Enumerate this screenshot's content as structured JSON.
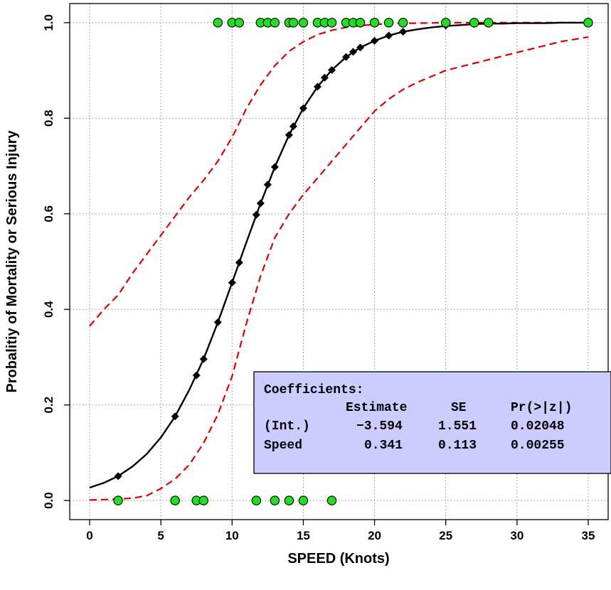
{
  "chart_data": {
    "type": "scatter",
    "xlabel": "SPEED (Knots)",
    "ylabel": "Probalitiy of Mortality or Serious Injury",
    "xlim": [
      -1.4,
      36.4
    ],
    "ylim": [
      -0.04,
      1.04
    ],
    "x_ticks": [
      "0",
      "5",
      "10",
      "15",
      "20",
      "25",
      "30",
      "35"
    ],
    "y_ticks": [
      "0.0",
      "0.2",
      "0.4",
      "0.6",
      "0.8",
      "1.0"
    ],
    "grid": true,
    "colors": {
      "fit": "#000000",
      "ci": "#dd0000",
      "points": "#22dd22",
      "box_fill": "#ccccff",
      "grid": "#888888"
    },
    "observed_zero": [
      2,
      6,
      7.5,
      8,
      11.7,
      13,
      14,
      15,
      17
    ],
    "observed_one": [
      9,
      10,
      10.5,
      12,
      12.5,
      13,
      14,
      14.3,
      15,
      16,
      16.5,
      17,
      18,
      18.5,
      19,
      20,
      21,
      22,
      25,
      27,
      28,
      35
    ],
    "fitted_x": [
      2,
      6,
      7.5,
      8,
      9,
      10,
      10.5,
      11.7,
      12,
      12.5,
      13,
      14,
      14.3,
      15,
      16,
      16.5,
      17,
      18,
      18.5,
      19,
      20,
      21,
      22,
      25,
      27,
      28,
      35
    ],
    "fitted_y": [
      0.051,
      0.176,
      0.262,
      0.296,
      0.373,
      0.456,
      0.498,
      0.598,
      0.622,
      0.661,
      0.698,
      0.765,
      0.783,
      0.821,
      0.866,
      0.885,
      0.901,
      0.928,
      0.939,
      0.948,
      0.962,
      0.973,
      0.981,
      0.994,
      0.997,
      0.998,
      1.0
    ],
    "fit_curve": {
      "x": [
        0,
        1,
        2,
        3,
        4,
        5,
        6,
        7,
        8,
        9,
        10,
        11,
        12,
        13,
        14,
        15,
        16,
        17,
        18,
        19,
        20,
        21,
        22,
        23,
        24,
        25,
        26,
        27,
        28,
        29,
        30,
        31,
        32,
        33,
        34,
        35
      ],
      "y": [
        0.027,
        0.037,
        0.051,
        0.071,
        0.097,
        0.132,
        0.176,
        0.232,
        0.296,
        0.373,
        0.456,
        0.54,
        0.622,
        0.698,
        0.765,
        0.821,
        0.866,
        0.901,
        0.928,
        0.948,
        0.962,
        0.973,
        0.981,
        0.986,
        0.99,
        0.993,
        0.995,
        0.997,
        0.998,
        0.998,
        0.999,
        0.999,
        0.999,
        1.0,
        1.0,
        1.0
      ]
    },
    "ci_upper": {
      "x": [
        0,
        1,
        2,
        3,
        4,
        5,
        6,
        7,
        8,
        9,
        10,
        11,
        12,
        13,
        14,
        15,
        16,
        17,
        18,
        19,
        20,
        21,
        22,
        23,
        25,
        27,
        29,
        35
      ],
      "y": [
        0.365,
        0.4,
        0.43,
        0.475,
        0.515,
        0.555,
        0.595,
        0.635,
        0.67,
        0.71,
        0.76,
        0.82,
        0.87,
        0.91,
        0.94,
        0.96,
        0.975,
        0.984,
        0.99,
        0.994,
        0.996,
        0.998,
        0.999,
        0.999,
        1.0,
        1.0,
        1.0,
        1.0
      ]
    },
    "ci_lower": {
      "x": [
        0,
        1,
        2,
        3,
        4,
        5,
        6,
        7,
        8,
        9,
        10,
        11,
        12,
        13,
        14,
        15,
        16,
        17,
        18,
        19,
        20,
        21,
        22,
        23,
        25,
        27,
        29,
        31,
        33,
        35
      ],
      "y": [
        0.001,
        0.002,
        0.003,
        0.005,
        0.01,
        0.025,
        0.045,
        0.075,
        0.12,
        0.18,
        0.26,
        0.37,
        0.47,
        0.55,
        0.6,
        0.64,
        0.675,
        0.71,
        0.745,
        0.78,
        0.815,
        0.84,
        0.86,
        0.875,
        0.9,
        0.915,
        0.93,
        0.945,
        0.96,
        0.97
      ]
    }
  },
  "coef_box": {
    "title": "Coefficients:",
    "headers": [
      "Estimate",
      "SE",
      "Pr(>|z|)"
    ],
    "rows": [
      {
        "label": "(Int.)",
        "estimate": "−3.594",
        "se": "1.551",
        "p": "0.02048"
      },
      {
        "label": "Speed",
        "estimate": "0.341",
        "se": "0.113",
        "p": "0.00255"
      }
    ]
  }
}
